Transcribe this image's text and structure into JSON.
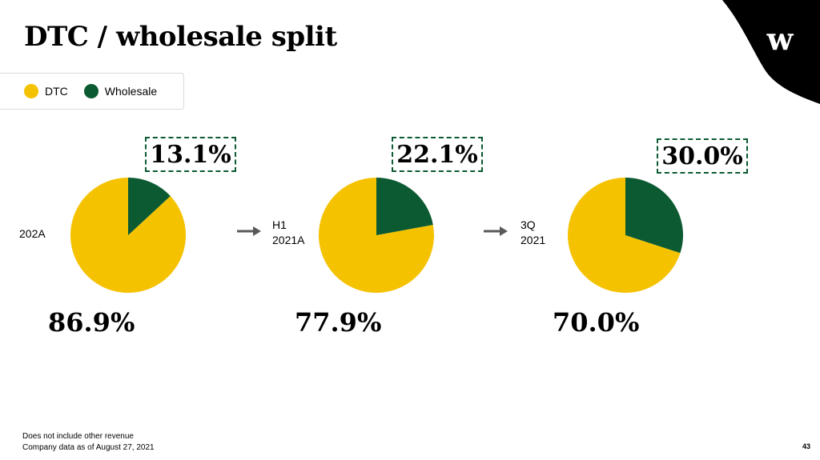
{
  "title": "DTC / wholesale split",
  "logo_text": "w",
  "legend": [
    {
      "label": "DTC",
      "color": "#F5C200"
    },
    {
      "label": "Wholesale",
      "color": "#0B5A32"
    }
  ],
  "chart_data": [
    {
      "type": "pie",
      "category_label": "202A",
      "slices": [
        {
          "name": "DTC",
          "value": 86.9
        },
        {
          "name": "Wholesale",
          "value": 13.1
        }
      ],
      "dtc_label": "86.9%",
      "wholesale_label": "13.1%"
    },
    {
      "type": "pie",
      "category_label": "H1\n2021A",
      "slices": [
        {
          "name": "DTC",
          "value": 77.9
        },
        {
          "name": "Wholesale",
          "value": 22.1
        }
      ],
      "dtc_label": "77.9%",
      "wholesale_label": "22.1%"
    },
    {
      "type": "pie",
      "category_label": "3Q\n2021",
      "slices": [
        {
          "name": "DTC",
          "value": 70.0
        },
        {
          "name": "Wholesale",
          "value": 30.0
        }
      ],
      "dtc_label": "70.0%",
      "wholesale_label": "30.0%"
    }
  ],
  "colors": {
    "dtc": "#F5C200",
    "wholesale": "#0B5A32",
    "arrow": "#595959",
    "corner": "#000000"
  },
  "footnotes": [
    "Does not include other revenue",
    "Company data as of August 27, 2021"
  ],
  "page_number": "43"
}
